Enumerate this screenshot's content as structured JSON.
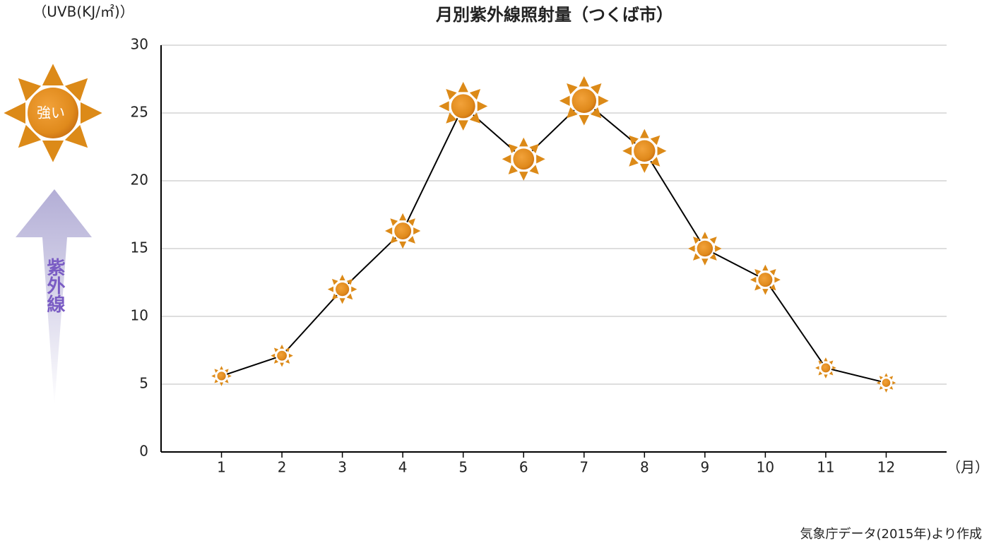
{
  "chart_data": {
    "type": "line",
    "title": "月別紫外線照射量（つくば市）",
    "y_label": "（UVB(KJ/㎡)）",
    "x_label": "（月）",
    "source": "気象庁データ(2015年)より作成",
    "legend_sun_label": "強い",
    "legend_arrow_label": "紫外線",
    "categories": [
      "1",
      "2",
      "3",
      "4",
      "5",
      "6",
      "7",
      "8",
      "9",
      "10",
      "11",
      "12"
    ],
    "values": [
      5.6,
      7.1,
      12.0,
      16.3,
      25.5,
      21.6,
      25.9,
      22.2,
      15.0,
      12.7,
      6.2,
      5.1
    ],
    "color": "#dc8a18",
    "line_color": "#000000",
    "ylim": [
      0,
      30
    ],
    "yticks": [
      0,
      5,
      10,
      15,
      20,
      25,
      30
    ],
    "grid": true
  }
}
